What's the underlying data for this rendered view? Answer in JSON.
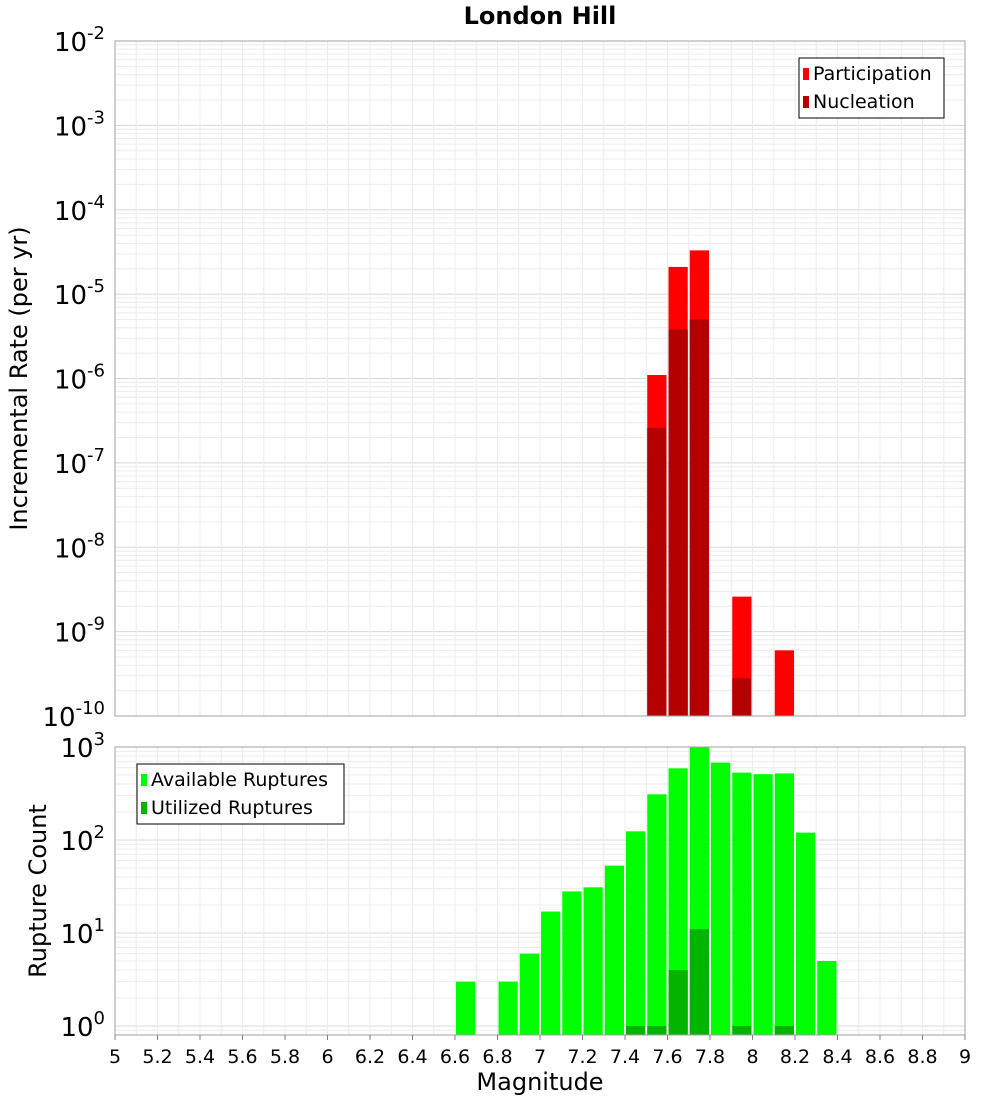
{
  "chart_data": [
    {
      "type": "bar",
      "title": "London Hill",
      "xlabel": "",
      "ylabel": "Incremental Rate (per yr)",
      "y_scale": "log",
      "ylim": [
        1e-10,
        0.01
      ],
      "xlim": [
        5,
        9
      ],
      "y_tick_exponents": [
        "-10",
        "-9",
        "-8",
        "-7",
        "-6",
        "-5",
        "-4",
        "-3",
        "-2"
      ],
      "grid": true,
      "legend_position": "top-right",
      "series": [
        {
          "name": "Participation",
          "color": "#ff0000",
          "x": [
            7.55,
            7.65,
            7.75,
            7.95,
            8.15
          ],
          "values": [
            1.1e-06,
            2.1e-05,
            3.3e-05,
            2.6e-09,
            6e-10
          ]
        },
        {
          "name": "Nucleation",
          "color": "#b40000",
          "x": [
            7.55,
            7.65,
            7.75,
            7.95
          ],
          "values": [
            2.6e-07,
            3.8e-06,
            5e-06,
            2.8e-10
          ]
        }
      ]
    },
    {
      "type": "bar",
      "title": "",
      "xlabel": "Magnitude",
      "ylabel": "Rupture Count",
      "y_scale": "log",
      "ylim": [
        0.8,
        1000
      ],
      "xlim": [
        5,
        9
      ],
      "y_tick_exponents": [
        "0",
        "1",
        "2",
        "3"
      ],
      "x_ticks": [
        "5",
        "5.2",
        "5.4",
        "5.6",
        "5.8",
        "6",
        "6.2",
        "6.4",
        "6.6",
        "6.8",
        "7",
        "7.2",
        "7.4",
        "7.6",
        "7.8",
        "8",
        "8.2",
        "8.4",
        "8.6",
        "8.8",
        "9"
      ],
      "grid": true,
      "legend_position": "top-left",
      "series": [
        {
          "name": "Available Ruptures",
          "color": "#00ff00",
          "x": [
            6.65,
            6.85,
            6.95,
            7.05,
            7.15,
            7.25,
            7.35,
            7.45,
            7.55,
            7.65,
            7.75,
            7.85,
            7.95,
            8.05,
            8.15,
            8.25,
            8.35
          ],
          "values": [
            3,
            3,
            6,
            17,
            28,
            31,
            53,
            124,
            310,
            590,
            1000,
            680,
            530,
            510,
            520,
            120,
            5
          ]
        },
        {
          "name": "Utilized Ruptures",
          "color": "#00b400",
          "x": [
            7.45,
            7.55,
            7.65,
            7.75,
            7.95,
            8.15
          ],
          "values": [
            1,
            1,
            4,
            11,
            1,
            1
          ]
        }
      ]
    }
  ]
}
